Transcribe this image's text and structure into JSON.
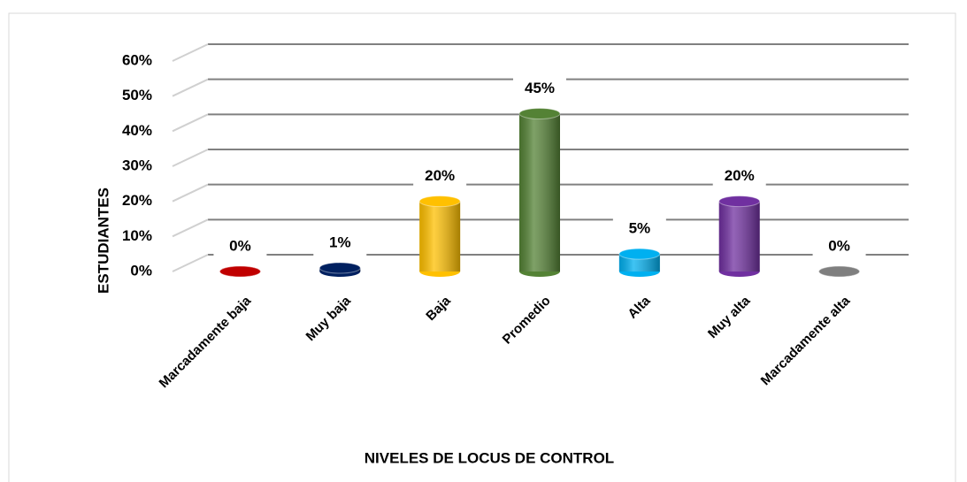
{
  "chart_data": {
    "type": "bar",
    "x_label": "NIVELES DE LOCUS DE CONTROL",
    "y_label": "ESTUDIANTES",
    "categories": [
      "Marcadamente baja",
      "Muy baja",
      "Baja",
      "Promedio",
      "Alta",
      "Muy alta",
      "Marcadamente alta"
    ],
    "values": [
      0,
      1,
      20,
      45,
      5,
      20,
      0
    ],
    "value_labels": [
      "0%",
      "1%",
      "20%",
      "45%",
      "5%",
      "20%",
      "0%"
    ],
    "colors": [
      "#c00000",
      "#002060",
      "#ffc000",
      "#548235",
      "#00b0f0",
      "#7030a0",
      "#7f7f7f"
    ],
    "ylim": [
      0,
      60
    ],
    "yticks": [
      {
        "value": 0,
        "label": "0%"
      },
      {
        "value": 10,
        "label": "10%"
      },
      {
        "value": 20,
        "label": "20%"
      },
      {
        "value": 30,
        "label": "30%"
      },
      {
        "value": 40,
        "label": "40%"
      },
      {
        "value": 50,
        "label": "50%"
      },
      {
        "value": 60,
        "label": "60%"
      }
    ],
    "grid": true
  }
}
